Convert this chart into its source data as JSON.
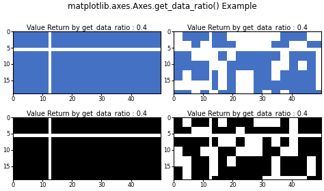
{
  "suptitle": "matplotlib.axes.Axes.get_data_ratio() Example",
  "subtitle": "Value Return by get_data_ratio : 0.4",
  "blue_r": 0.267,
  "blue_g": 0.447,
  "blue_b": 0.769,
  "img_rows": 19,
  "img_cols": 50,
  "cross_row": 5,
  "cross_col": 12,
  "seed_noise1": 12345,
  "seed_noise2": 67890,
  "noise_threshold": 0.65,
  "xlim_ticks": [
    0,
    10,
    20,
    30,
    40
  ],
  "ylim_ticks": [
    0,
    5,
    10,
    15
  ],
  "suptitle_fontsize": 8.5,
  "subtitle_fontsize": 7,
  "tick_fontsize": 6,
  "figwidth": 4.74,
  "figheight": 2.8,
  "dpi": 100
}
